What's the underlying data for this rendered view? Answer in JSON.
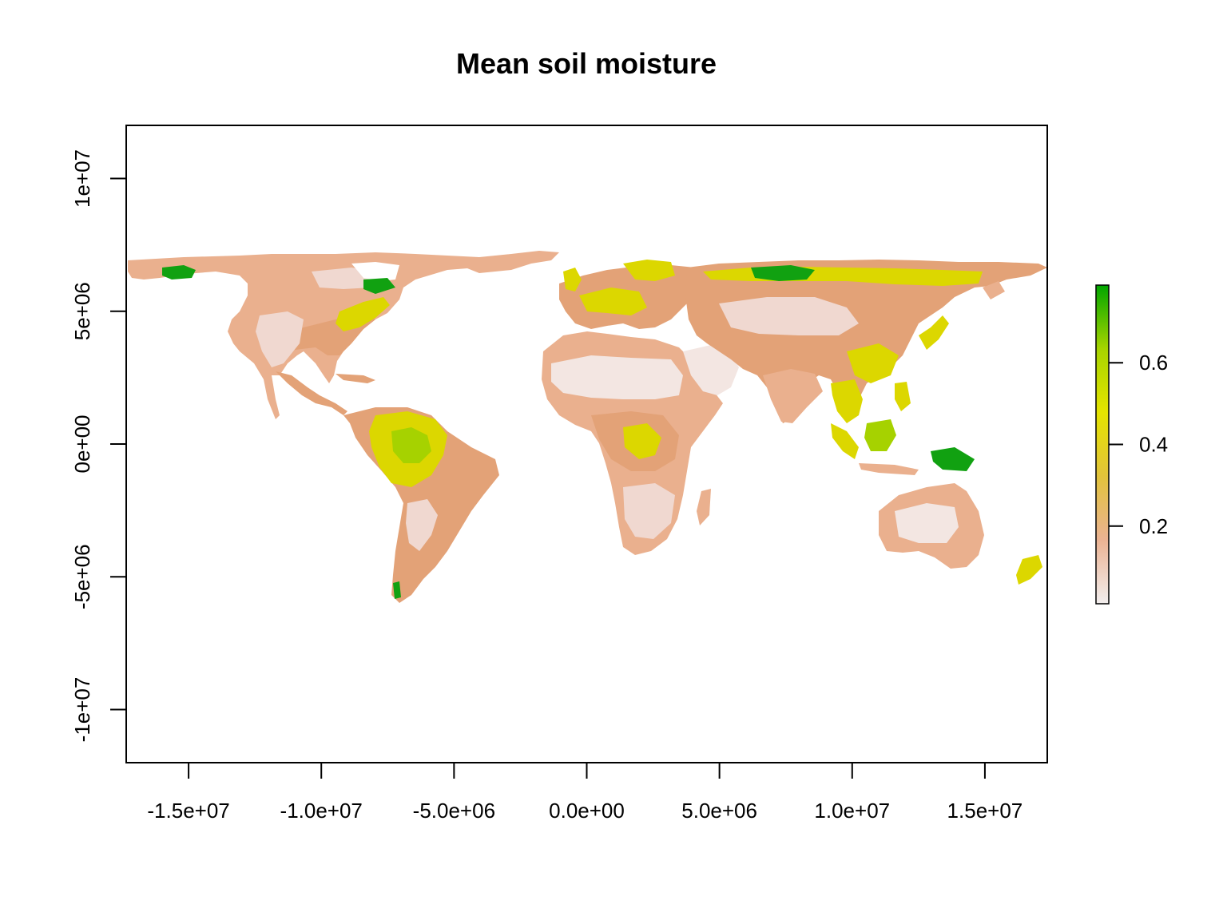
{
  "chart_data": {
    "type": "raster map",
    "title": "Mean soil moisture",
    "projection_units": "meters",
    "x_ticks": [
      {
        "value": -15000000,
        "label": "-1.5e+07"
      },
      {
        "value": -10000000,
        "label": "-1.0e+07"
      },
      {
        "value": -5000000,
        "label": "-5.0e+06"
      },
      {
        "value": 0,
        "label": "0.0e+00"
      },
      {
        "value": 5000000,
        "label": "5.0e+06"
      },
      {
        "value": 10000000,
        "label": "1.0e+07"
      },
      {
        "value": 15000000,
        "label": "1.5e+07"
      }
    ],
    "y_ticks": [
      {
        "value": 10000000,
        "label": "1e+07"
      },
      {
        "value": 5000000,
        "label": "5e+06"
      },
      {
        "value": 0,
        "label": "0e+00"
      },
      {
        "value": -5000000,
        "label": "-5e+06"
      },
      {
        "value": -10000000,
        "label": "-1e+07"
      }
    ],
    "xlim": [
      -17350000,
      17350000
    ],
    "ylim": [
      -12000000,
      12000000
    ],
    "legend": {
      "placement": "right",
      "range": [
        0.01,
        0.79
      ],
      "ticks": [
        {
          "value": 0.2,
          "label": "0.2"
        },
        {
          "value": 0.4,
          "label": "0.4"
        },
        {
          "value": 0.6,
          "label": "0.6"
        }
      ],
      "colors": [
        "#f2eeee",
        "#ebb393",
        "#e2c33b",
        "#e5e400",
        "#a7d400",
        "#00a600"
      ]
    },
    "grid": false,
    "land_colors": {
      "dry": "#f0d8d0",
      "desert": "#f3e6e2",
      "moderate": "#eab08e",
      "semi": "#e3a277",
      "wet": "#dcd700",
      "very_wet": "#a6d200",
      "saturated": "#11a111"
    }
  }
}
